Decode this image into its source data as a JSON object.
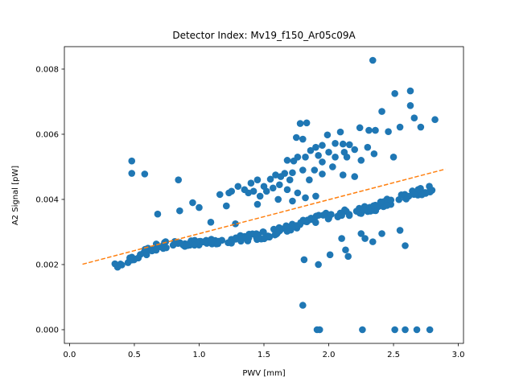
{
  "chart_data": {
    "type": "scatter",
    "title": "Detector Index: Mv19_f150_Ar05c09A",
    "xlabel": "PWV [mm]",
    "ylabel": "A2 Signal [pW]",
    "xlim": [
      -0.04,
      3.04
    ],
    "ylim": [
      -0.00042,
      0.00869
    ],
    "xticks": [
      0.0,
      0.5,
      1.0,
      1.5,
      2.0,
      2.5,
      3.0
    ],
    "xtick_labels": [
      "0.0",
      "0.5",
      "1.0",
      "1.5",
      "2.0",
      "2.5",
      "3.0"
    ],
    "yticks": [
      0.0,
      0.002,
      0.004,
      0.006,
      0.008
    ],
    "ytick_labels": [
      "0.000",
      "0.002",
      "0.004",
      "0.006",
      "0.008"
    ],
    "grid": false,
    "colors": {
      "points": "#1f77b4",
      "fit": "#ff7f0e"
    },
    "fit_line": {
      "name": "linear fit",
      "style": "dashed",
      "x": [
        0.1,
        2.9
      ],
      "y": [
        0.00201,
        0.00493
      ]
    },
    "band_segments": [
      [
        0.35,
        0.00193,
        0.7,
        0.0026
      ],
      [
        0.7,
        0.0026,
        1.0,
        0.00266
      ],
      [
        1.0,
        0.00262,
        1.5,
        0.0029
      ],
      [
        1.5,
        0.0029,
        2.0,
        0.0035
      ],
      [
        2.0,
        0.0035,
        2.4,
        0.00378
      ],
      [
        2.4,
        0.00385,
        2.8,
        0.00435
      ]
    ],
    "outliers": [
      [
        2.34,
        0.00827
      ],
      [
        2.63,
        0.00733
      ],
      [
        2.51,
        0.00725
      ],
      [
        2.63,
        0.00688
      ],
      [
        2.41,
        0.0067
      ],
      [
        2.66,
        0.0065
      ],
      [
        2.82,
        0.00645
      ],
      [
        1.78,
        0.00633
      ],
      [
        1.83,
        0.00635
      ],
      [
        2.24,
        0.0062
      ],
      [
        2.31,
        0.00612
      ],
      [
        2.36,
        0.00612
      ],
      [
        2.55,
        0.00622
      ],
      [
        2.71,
        0.00622
      ],
      [
        2.46,
        0.00608
      ],
      [
        2.09,
        0.00607
      ],
      [
        1.99,
        0.00598
      ],
      [
        1.75,
        0.0059
      ],
      [
        1.8,
        0.00585
      ],
      [
        2.05,
        0.00572
      ],
      [
        2.11,
        0.0057
      ],
      [
        2.16,
        0.00568
      ],
      [
        1.95,
        0.00566
      ],
      [
        1.9,
        0.0056
      ],
      [
        2.3,
        0.0056
      ],
      [
        1.86,
        0.0055
      ],
      [
        2.0,
        0.00545
      ],
      [
        2.12,
        0.00545
      ],
      [
        2.2,
        0.00553
      ],
      [
        2.35,
        0.0054
      ],
      [
        1.76,
        0.0053
      ],
      [
        1.82,
        0.0053
      ],
      [
        1.92,
        0.00535
      ],
      [
        2.05,
        0.0053
      ],
      [
        2.14,
        0.0053
      ],
      [
        2.25,
        0.0052
      ],
      [
        2.5,
        0.0053
      ],
      [
        1.68,
        0.0052
      ],
      [
        1.73,
        0.00518
      ],
      [
        1.95,
        0.00515
      ],
      [
        2.03,
        0.005
      ],
      [
        1.66,
        0.0048
      ],
      [
        1.72,
        0.00482
      ],
      [
        1.8,
        0.0049
      ],
      [
        1.89,
        0.0049
      ],
      [
        1.95,
        0.00478
      ],
      [
        2.11,
        0.00475
      ],
      [
        1.59,
        0.00475
      ],
      [
        1.63,
        0.0047
      ],
      [
        2.2,
        0.0047
      ],
      [
        1.45,
        0.0046
      ],
      [
        1.55,
        0.00462
      ],
      [
        1.7,
        0.0046
      ],
      [
        1.85,
        0.0046
      ],
      [
        1.4,
        0.0045
      ],
      [
        1.3,
        0.0044
      ],
      [
        1.5,
        0.0044
      ],
      [
        1.62,
        0.00445
      ],
      [
        1.25,
        0.00425
      ],
      [
        1.35,
        0.0043
      ],
      [
        1.42,
        0.00425
      ],
      [
        1.57,
        0.00435
      ],
      [
        1.16,
        0.00415
      ],
      [
        1.23,
        0.0042
      ],
      [
        1.38,
        0.0042
      ],
      [
        1.47,
        0.0041
      ],
      [
        1.52,
        0.00425
      ],
      [
        1.68,
        0.0043
      ],
      [
        1.76,
        0.0042
      ],
      [
        1.9,
        0.0041
      ],
      [
        1.82,
        0.00405
      ],
      [
        1.61,
        0.004
      ],
      [
        1.72,
        0.00395
      ],
      [
        1.0,
        0.00375
      ],
      [
        0.95,
        0.0039
      ],
      [
        0.85,
        0.00365
      ],
      [
        0.68,
        0.00355
      ],
      [
        0.84,
        0.0046
      ],
      [
        0.48,
        0.00518
      ],
      [
        0.48,
        0.0048
      ],
      [
        0.58,
        0.00478
      ],
      [
        1.21,
        0.0038
      ],
      [
        1.45,
        0.00385
      ],
      [
        1.09,
        0.0033
      ],
      [
        1.28,
        0.00325
      ],
      [
        1.8,
        0.00075
      ],
      [
        1.81,
        0.00215
      ],
      [
        1.92,
        0.002
      ],
      [
        2.01,
        0.0023
      ],
      [
        2.13,
        0.00245
      ],
      [
        2.15,
        0.00225
      ],
      [
        2.1,
        0.0028
      ],
      [
        2.25,
        0.00295
      ],
      [
        2.28,
        0.0028
      ],
      [
        2.34,
        0.0027
      ],
      [
        2.41,
        0.00295
      ],
      [
        2.55,
        0.00305
      ],
      [
        2.59,
        0.00258
      ],
      [
        1.91,
        0.0
      ],
      [
        1.93,
        0.0
      ],
      [
        2.26,
        0.0
      ],
      [
        2.51,
        0.0
      ],
      [
        2.59,
        0.0
      ],
      [
        2.68,
        0.0
      ],
      [
        2.78,
        0.0
      ]
    ]
  }
}
